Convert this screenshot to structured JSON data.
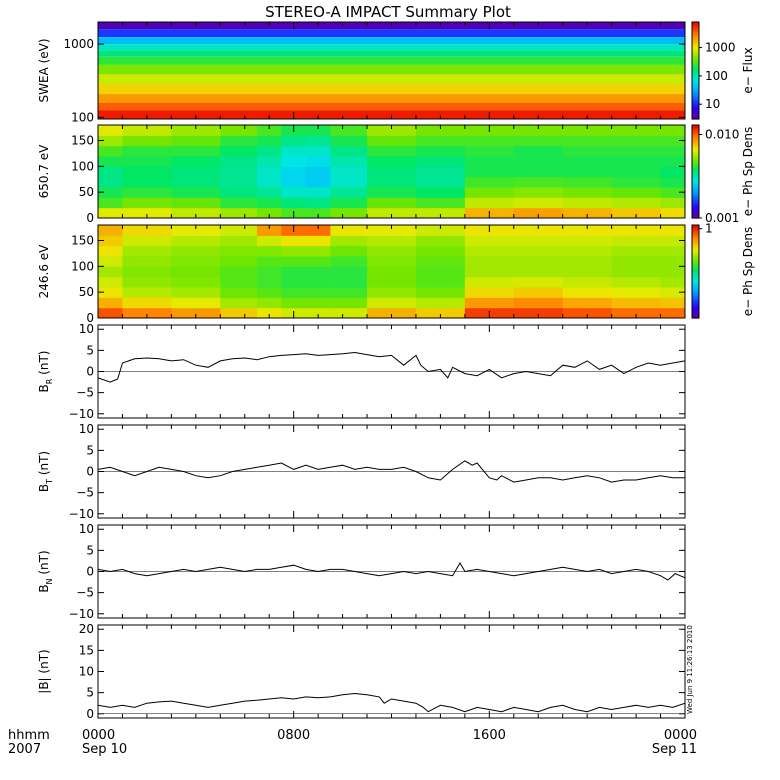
{
  "title": "STEREO-A IMPACT Summary Plot",
  "timestamp": "Wed Jun 9 11:26:13 2010",
  "x_axis": {
    "row_label": "hhmm",
    "year_label": "2007",
    "ticks": [
      {
        "hours": 0,
        "time": "0000",
        "date": "Sep 10"
      },
      {
        "hours": 8,
        "time": "0800",
        "date": ""
      },
      {
        "hours": 16,
        "time": "1600",
        "date": ""
      },
      {
        "hours": 24,
        "time": "0000",
        "date": "Sep 11"
      }
    ],
    "range_hours": [
      0,
      24
    ],
    "minor_tick_every_hours": 1
  },
  "chart_data": [
    {
      "type": "heatmap",
      "panel": "swea-flux",
      "ylabel": "SWEA (eV)",
      "yscale": "log",
      "ylim": [
        95,
        2000
      ],
      "yticks": [
        {
          "value": 100,
          "label": "100"
        },
        {
          "value": 1000,
          "label": "1000"
        }
      ],
      "colorbar": {
        "label": "e− Flux",
        "scale": "log",
        "range": [
          3,
          8000
        ],
        "ticks": [
          {
            "value": 10,
            "label": "10"
          },
          {
            "value": 100,
            "label": "100"
          },
          {
            "value": 1000,
            "label": "1000"
          }
        ]
      },
      "rows": [
        {
          "energy": 1800,
          "flux": 4
        },
        {
          "energy": 1400,
          "flux": 12
        },
        {
          "energy": 1100,
          "flux": 40
        },
        {
          "energy": 900,
          "flux": 90
        },
        {
          "energy": 750,
          "flux": 150
        },
        {
          "energy": 600,
          "flux": 250
        },
        {
          "energy": 450,
          "flux": 450
        },
        {
          "energy": 330,
          "flux": 800
        },
        {
          "energy": 240,
          "flux": 1300
        },
        {
          "energy": 180,
          "flux": 2300
        },
        {
          "energy": 140,
          "flux": 3800
        },
        {
          "energy": 110,
          "flux": 6500
        }
      ]
    },
    {
      "type": "heatmap",
      "panel": "pad-650",
      "ylabel": "650.7 eV",
      "ylim": [
        0,
        180
      ],
      "yticks": [
        {
          "value": 0,
          "label": "0"
        },
        {
          "value": 50,
          "label": "50"
        },
        {
          "value": 100,
          "label": "100"
        },
        {
          "value": 150,
          "label": "150"
        }
      ],
      "colorbar": {
        "label": "e− Ph Sp Dens",
        "scale": "log",
        "range": [
          0.001,
          0.013
        ],
        "ticks": [
          {
            "value": 0.001,
            "label": "0.001"
          },
          {
            "value": 0.01,
            "label": "0.010"
          }
        ]
      },
      "pitch_bins": [
        10,
        30,
        50,
        70,
        90,
        110,
        130,
        150,
        170
      ],
      "time_hours": [
        0,
        2,
        4,
        6,
        7,
        8,
        9,
        10,
        12,
        14,
        16,
        18,
        20,
        22,
        24
      ],
      "values": [
        [
          0.0065,
          0.0045,
          0.004,
          0.0035,
          0.0035,
          0.004,
          0.0045,
          0.0055,
          0.0065
        ],
        [
          0.0065,
          0.005,
          0.0042,
          0.0038,
          0.0038,
          0.004,
          0.0042,
          0.005,
          0.006
        ],
        [
          0.006,
          0.0048,
          0.004,
          0.0036,
          0.0036,
          0.0038,
          0.0042,
          0.0048,
          0.0055
        ],
        [
          0.0055,
          0.0042,
          0.0036,
          0.0034,
          0.0034,
          0.0035,
          0.0038,
          0.0042,
          0.005
        ],
        [
          0.005,
          0.004,
          0.0034,
          0.003,
          0.003,
          0.0032,
          0.0035,
          0.004,
          0.0045
        ],
        [
          0.0045,
          0.0036,
          0.003,
          0.0026,
          0.0026,
          0.0028,
          0.003,
          0.0035,
          0.004
        ],
        [
          0.0045,
          0.0035,
          0.003,
          0.0025,
          0.0025,
          0.0027,
          0.003,
          0.0034,
          0.004
        ],
        [
          0.005,
          0.004,
          0.0034,
          0.003,
          0.003,
          0.0032,
          0.0035,
          0.004,
          0.0045
        ],
        [
          0.006,
          0.0048,
          0.004,
          0.0036,
          0.0036,
          0.0038,
          0.0042,
          0.0048,
          0.0055
        ],
        [
          0.006,
          0.0045,
          0.0038,
          0.0034,
          0.0034,
          0.0036,
          0.004,
          0.0045,
          0.005
        ],
        [
          0.008,
          0.006,
          0.005,
          0.0044,
          0.004,
          0.004,
          0.0042,
          0.0045,
          0.005
        ],
        [
          0.0085,
          0.0062,
          0.0052,
          0.0045,
          0.004,
          0.004,
          0.004,
          0.0045,
          0.005
        ],
        [
          0.008,
          0.006,
          0.005,
          0.0044,
          0.004,
          0.004,
          0.0042,
          0.0045,
          0.005
        ],
        [
          0.0075,
          0.0058,
          0.0048,
          0.0042,
          0.004,
          0.004,
          0.0042,
          0.0045,
          0.005
        ],
        [
          0.007,
          0.0055,
          0.0045,
          0.004,
          0.0038,
          0.004,
          0.0042,
          0.0045,
          0.005
        ]
      ]
    },
    {
      "type": "heatmap",
      "panel": "pad-246",
      "ylabel": "246.6 eV",
      "ylim": [
        0,
        180
      ],
      "yticks": [
        {
          "value": 0,
          "label": "0"
        },
        {
          "value": 50,
          "label": "50"
        },
        {
          "value": 100,
          "label": "100"
        },
        {
          "value": 150,
          "label": "150"
        }
      ],
      "colorbar": {
        "label": "e− Ph Sp Dens",
        "scale": "log",
        "range": [
          0.1,
          1.1
        ],
        "ticks": [
          {
            "value": 1,
            "label": "1"
          }
        ]
      },
      "pitch_bins": [
        10,
        30,
        50,
        70,
        90,
        110,
        130,
        150,
        170
      ],
      "time_hours": [
        0,
        2,
        4,
        6,
        7,
        8,
        9,
        10,
        12,
        14,
        16,
        18,
        20,
        22,
        24
      ],
      "values": [
        [
          0.9,
          0.7,
          0.6,
          0.55,
          0.5,
          0.55,
          0.6,
          0.65,
          0.7
        ],
        [
          0.8,
          0.62,
          0.52,
          0.48,
          0.46,
          0.48,
          0.5,
          0.55,
          0.62
        ],
        [
          0.75,
          0.58,
          0.5,
          0.46,
          0.45,
          0.46,
          0.48,
          0.52,
          0.58
        ],
        [
          0.65,
          0.5,
          0.44,
          0.42,
          0.42,
          0.44,
          0.46,
          0.5,
          0.55
        ],
        [
          0.6,
          0.48,
          0.42,
          0.4,
          0.4,
          0.42,
          0.46,
          0.55,
          0.75
        ],
        [
          0.55,
          0.45,
          0.4,
          0.38,
          0.38,
          0.42,
          0.48,
          0.6,
          0.85
        ],
        [
          0.55,
          0.45,
          0.4,
          0.38,
          0.38,
          0.42,
          0.48,
          0.6,
          0.85
        ],
        [
          0.55,
          0.45,
          0.4,
          0.38,
          0.38,
          0.4,
          0.44,
          0.5,
          0.6
        ],
        [
          0.7,
          0.55,
          0.48,
          0.45,
          0.45,
          0.46,
          0.48,
          0.52,
          0.58
        ],
        [
          0.65,
          0.52,
          0.45,
          0.42,
          0.42,
          0.43,
          0.45,
          0.48,
          0.55
        ],
        [
          0.95,
          0.75,
          0.62,
          0.55,
          0.5,
          0.5,
          0.52,
          0.55,
          0.6
        ],
        [
          0.95,
          0.78,
          0.65,
          0.56,
          0.5,
          0.5,
          0.52,
          0.55,
          0.6
        ],
        [
          0.9,
          0.72,
          0.6,
          0.54,
          0.5,
          0.5,
          0.52,
          0.55,
          0.6
        ],
        [
          0.85,
          0.68,
          0.58,
          0.52,
          0.48,
          0.48,
          0.5,
          0.54,
          0.6
        ],
        [
          0.85,
          0.66,
          0.56,
          0.5,
          0.48,
          0.48,
          0.5,
          0.54,
          0.6
        ]
      ]
    },
    {
      "type": "line",
      "panel": "br",
      "ylabel_main": "B",
      "ylabel_sub": "R",
      "ylabel_unit": " (nT)",
      "ylim": [
        -11,
        11
      ],
      "yticks": [
        {
          "value": -10,
          "label": "−10"
        },
        {
          "value": -5,
          "label": "−5"
        },
        {
          "value": 0,
          "label": "0"
        },
        {
          "value": 5,
          "label": "5"
        },
        {
          "value": 10,
          "label": "10"
        }
      ],
      "x": [
        0,
        0.5,
        0.8,
        1.0,
        1.5,
        2.0,
        2.5,
        3.0,
        3.5,
        4.0,
        4.5,
        5.0,
        5.5,
        6.0,
        6.5,
        7.0,
        7.5,
        8.0,
        8.5,
        9.0,
        9.5,
        10.0,
        10.5,
        11.0,
        11.5,
        12.0,
        12.5,
        13.0,
        13.2,
        13.5,
        14.0,
        14.3,
        14.5,
        15.0,
        15.5,
        16.0,
        16.5,
        17.0,
        17.5,
        18.0,
        18.5,
        19.0,
        19.5,
        20.0,
        20.5,
        21.0,
        21.5,
        22.0,
        22.5,
        23.0,
        23.5,
        24.0
      ],
      "y": [
        -1.5,
        -2.5,
        -1.8,
        2.0,
        3.0,
        3.2,
        3.0,
        2.5,
        2.8,
        1.5,
        1.0,
        2.5,
        3.0,
        3.2,
        2.8,
        3.5,
        3.8,
        4.0,
        4.2,
        3.8,
        4.0,
        4.2,
        4.5,
        4.0,
        3.5,
        3.8,
        1.5,
        3.8,
        1.5,
        0.0,
        0.5,
        -1.5,
        1.0,
        -0.5,
        -1.0,
        0.5,
        -1.5,
        -0.5,
        0.0,
        -0.5,
        -1.0,
        1.5,
        1.0,
        2.5,
        0.5,
        1.5,
        -0.5,
        1.0,
        2.0,
        1.5,
        2.0,
        2.5
      ]
    },
    {
      "type": "line",
      "panel": "bt",
      "ylabel_main": "B",
      "ylabel_sub": "T",
      "ylabel_unit": " (nT)",
      "ylim": [
        -11,
        11
      ],
      "yticks": [
        {
          "value": -10,
          "label": "−10"
        },
        {
          "value": -5,
          "label": "−5"
        },
        {
          "value": 0,
          "label": "0"
        },
        {
          "value": 5,
          "label": "5"
        },
        {
          "value": 10,
          "label": "10"
        }
      ],
      "x": [
        0,
        0.5,
        1.0,
        1.5,
        2.0,
        2.5,
        3.0,
        3.5,
        4.0,
        4.5,
        5.0,
        5.5,
        6.0,
        6.5,
        7.0,
        7.5,
        8.0,
        8.5,
        9.0,
        9.5,
        10.0,
        10.5,
        11.0,
        11.5,
        12.0,
        12.5,
        13.0,
        13.5,
        14.0,
        14.5,
        15.0,
        15.3,
        15.5,
        16.0,
        16.3,
        16.5,
        17.0,
        17.5,
        18.0,
        18.5,
        19.0,
        19.5,
        20.0,
        20.5,
        21.0,
        21.5,
        22.0,
        22.5,
        23.0,
        23.5,
        24.0
      ],
      "y": [
        0.5,
        1.0,
        0.0,
        -1.0,
        0.0,
        1.0,
        0.5,
        0.0,
        -1.0,
        -1.5,
        -1.0,
        0.0,
        0.5,
        1.0,
        1.5,
        2.0,
        0.5,
        1.5,
        0.5,
        1.0,
        1.5,
        0.5,
        1.0,
        0.5,
        0.5,
        1.0,
        0.0,
        -1.5,
        -2.0,
        0.5,
        2.5,
        1.5,
        2.0,
        -1.5,
        -2.0,
        -1.0,
        -2.5,
        -2.0,
        -1.5,
        -1.5,
        -2.0,
        -1.5,
        -1.0,
        -1.5,
        -2.5,
        -2.0,
        -2.0,
        -1.5,
        -1.0,
        -1.5,
        -1.5
      ]
    },
    {
      "type": "line",
      "panel": "bn",
      "ylabel_main": "B",
      "ylabel_sub": "N",
      "ylabel_unit": " (nT)",
      "ylim": [
        -11,
        11
      ],
      "yticks": [
        {
          "value": -10,
          "label": "−10"
        },
        {
          "value": -5,
          "label": "−5"
        },
        {
          "value": 0,
          "label": "0"
        },
        {
          "value": 5,
          "label": "5"
        },
        {
          "value": 10,
          "label": "10"
        }
      ],
      "x": [
        0,
        0.5,
        1.0,
        1.5,
        2.0,
        2.5,
        3.0,
        3.5,
        4.0,
        4.5,
        5.0,
        5.5,
        6.0,
        6.5,
        7.0,
        7.5,
        8.0,
        8.5,
        9.0,
        9.5,
        10.0,
        10.5,
        11.0,
        11.5,
        12.0,
        12.5,
        13.0,
        13.5,
        14.0,
        14.5,
        14.8,
        15.0,
        15.5,
        16.0,
        16.5,
        17.0,
        17.5,
        18.0,
        18.5,
        19.0,
        19.5,
        20.0,
        20.5,
        21.0,
        21.5,
        22.0,
        22.5,
        23.0,
        23.3,
        23.6,
        24.0
      ],
      "y": [
        0.5,
        0.0,
        0.5,
        -0.5,
        -1.0,
        -0.5,
        0.0,
        0.5,
        0.0,
        0.5,
        1.0,
        0.5,
        0.0,
        0.5,
        0.5,
        1.0,
        1.5,
        0.5,
        0.0,
        0.5,
        0.5,
        0.0,
        -0.5,
        -1.0,
        -0.5,
        0.0,
        -0.5,
        0.0,
        -0.5,
        -1.0,
        2.0,
        0.0,
        0.5,
        0.0,
        -0.5,
        -1.0,
        -0.5,
        0.0,
        0.5,
        1.0,
        0.5,
        0.0,
        0.5,
        -0.5,
        0.0,
        0.5,
        0.0,
        -1.0,
        -2.0,
        -0.5,
        -1.5
      ]
    },
    {
      "type": "line",
      "panel": "bmag",
      "ylabel": "|B| (nT)",
      "ylim": [
        -1,
        21
      ],
      "yticks": [
        {
          "value": 0,
          "label": "0"
        },
        {
          "value": 5,
          "label": "5"
        },
        {
          "value": 10,
          "label": "10"
        },
        {
          "value": 15,
          "label": "15"
        },
        {
          "value": 20,
          "label": "20"
        }
      ],
      "x": [
        0,
        0.5,
        1.0,
        1.5,
        2.0,
        2.5,
        3.0,
        3.5,
        4.0,
        4.5,
        5.0,
        5.5,
        6.0,
        6.5,
        7.0,
        7.5,
        8.0,
        8.5,
        9.0,
        9.5,
        10.0,
        10.5,
        11.0,
        11.5,
        11.7,
        12.0,
        12.5,
        13.0,
        13.3,
        13.5,
        14.0,
        14.5,
        15.0,
        15.5,
        16.0,
        16.5,
        17.0,
        17.5,
        18.0,
        18.5,
        19.0,
        19.5,
        20.0,
        20.5,
        21.0,
        21.5,
        22.0,
        22.5,
        23.0,
        23.5,
        24.0
      ],
      "y": [
        2.0,
        1.5,
        2.0,
        1.5,
        2.5,
        2.8,
        3.0,
        2.5,
        2.0,
        1.5,
        2.0,
        2.5,
        3.0,
        3.2,
        3.5,
        3.8,
        3.5,
        4.0,
        3.8,
        4.0,
        4.5,
        4.8,
        4.5,
        4.0,
        2.5,
        3.5,
        3.0,
        2.5,
        1.5,
        0.5,
        2.0,
        1.5,
        0.5,
        1.5,
        1.0,
        0.5,
        1.5,
        1.0,
        0.5,
        1.5,
        2.0,
        1.0,
        0.5,
        1.5,
        1.0,
        1.5,
        2.0,
        1.5,
        2.0,
        1.5,
        2.5
      ]
    }
  ]
}
